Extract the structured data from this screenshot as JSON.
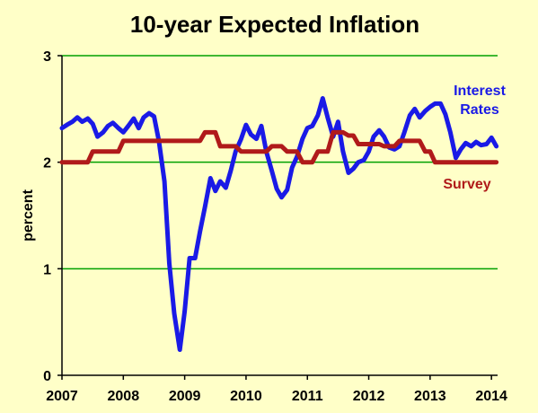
{
  "chart_data": {
    "type": "line",
    "title": "10-year Expected Inflation",
    "ylabel": "percent",
    "xlabel": "",
    "xlim": [
      2007,
      2014.1
    ],
    "ylim": [
      0,
      3
    ],
    "xticks": [
      "2007",
      "2008",
      "2009",
      "2010",
      "2011",
      "2012",
      "2013",
      "2014"
    ],
    "yticks": [
      "0",
      "1",
      "2",
      "3"
    ],
    "grid": "horizontal",
    "colors": {
      "background": "#FFFFC8",
      "grid": "#00A000",
      "axis": "#000000"
    },
    "series": [
      {
        "name": "Interest Rates",
        "label_lines": [
          "Interest",
          "Rates"
        ],
        "color": "#1A1AE6",
        "points": [
          [
            2007.0,
            2.32
          ],
          [
            2007.08,
            2.35
          ],
          [
            2007.17,
            2.38
          ],
          [
            2007.25,
            2.42
          ],
          [
            2007.33,
            2.38
          ],
          [
            2007.42,
            2.41
          ],
          [
            2007.5,
            2.36
          ],
          [
            2007.58,
            2.24
          ],
          [
            2007.67,
            2.28
          ],
          [
            2007.75,
            2.34
          ],
          [
            2007.83,
            2.37
          ],
          [
            2007.92,
            2.32
          ],
          [
            2008.0,
            2.28
          ],
          [
            2008.08,
            2.34
          ],
          [
            2008.17,
            2.41
          ],
          [
            2008.25,
            2.32
          ],
          [
            2008.33,
            2.42
          ],
          [
            2008.42,
            2.46
          ],
          [
            2008.5,
            2.43
          ],
          [
            2008.58,
            2.2
          ],
          [
            2008.67,
            1.82
          ],
          [
            2008.75,
            1.05
          ],
          [
            2008.83,
            0.58
          ],
          [
            2008.92,
            0.24
          ],
          [
            2009.0,
            0.6
          ],
          [
            2009.08,
            1.1
          ],
          [
            2009.17,
            1.1
          ],
          [
            2009.25,
            1.35
          ],
          [
            2009.33,
            1.58
          ],
          [
            2009.42,
            1.85
          ],
          [
            2009.5,
            1.73
          ],
          [
            2009.58,
            1.82
          ],
          [
            2009.67,
            1.76
          ],
          [
            2009.75,
            1.92
          ],
          [
            2009.83,
            2.1
          ],
          [
            2009.92,
            2.22
          ],
          [
            2010.0,
            2.35
          ],
          [
            2010.08,
            2.26
          ],
          [
            2010.17,
            2.22
          ],
          [
            2010.25,
            2.34
          ],
          [
            2010.33,
            2.1
          ],
          [
            2010.42,
            1.92
          ],
          [
            2010.5,
            1.75
          ],
          [
            2010.58,
            1.67
          ],
          [
            2010.67,
            1.74
          ],
          [
            2010.75,
            1.95
          ],
          [
            2010.83,
            2.05
          ],
          [
            2010.92,
            2.22
          ],
          [
            2011.0,
            2.32
          ],
          [
            2011.08,
            2.34
          ],
          [
            2011.17,
            2.44
          ],
          [
            2011.25,
            2.6
          ],
          [
            2011.33,
            2.42
          ],
          [
            2011.42,
            2.24
          ],
          [
            2011.5,
            2.38
          ],
          [
            2011.58,
            2.1
          ],
          [
            2011.67,
            1.9
          ],
          [
            2011.75,
            1.94
          ],
          [
            2011.83,
            2.0
          ],
          [
            2011.92,
            2.02
          ],
          [
            2012.0,
            2.1
          ],
          [
            2012.08,
            2.24
          ],
          [
            2012.17,
            2.3
          ],
          [
            2012.25,
            2.24
          ],
          [
            2012.33,
            2.14
          ],
          [
            2012.42,
            2.12
          ],
          [
            2012.5,
            2.15
          ],
          [
            2012.58,
            2.28
          ],
          [
            2012.67,
            2.44
          ],
          [
            2012.75,
            2.5
          ],
          [
            2012.83,
            2.42
          ],
          [
            2012.92,
            2.48
          ],
          [
            2013.0,
            2.52
          ],
          [
            2013.08,
            2.55
          ],
          [
            2013.17,
            2.55
          ],
          [
            2013.25,
            2.45
          ],
          [
            2013.33,
            2.28
          ],
          [
            2013.42,
            2.04
          ],
          [
            2013.5,
            2.12
          ],
          [
            2013.58,
            2.18
          ],
          [
            2013.67,
            2.15
          ],
          [
            2013.75,
            2.19
          ],
          [
            2013.83,
            2.16
          ],
          [
            2013.92,
            2.17
          ],
          [
            2014.0,
            2.23
          ],
          [
            2014.08,
            2.15
          ]
        ]
      },
      {
        "name": "Survey",
        "label_lines": [
          "Survey"
        ],
        "color": "#B01A1A",
        "points": [
          [
            2007.0,
            2.0
          ],
          [
            2007.42,
            2.0
          ],
          [
            2007.5,
            2.1
          ],
          [
            2007.92,
            2.1
          ],
          [
            2008.0,
            2.2
          ],
          [
            2009.25,
            2.2
          ],
          [
            2009.33,
            2.28
          ],
          [
            2009.5,
            2.28
          ],
          [
            2009.58,
            2.15
          ],
          [
            2009.83,
            2.15
          ],
          [
            2009.92,
            2.1
          ],
          [
            2010.33,
            2.1
          ],
          [
            2010.42,
            2.15
          ],
          [
            2010.58,
            2.15
          ],
          [
            2010.67,
            2.1
          ],
          [
            2010.83,
            2.1
          ],
          [
            2010.92,
            2.0
          ],
          [
            2011.08,
            2.0
          ],
          [
            2011.17,
            2.1
          ],
          [
            2011.33,
            2.1
          ],
          [
            2011.42,
            2.28
          ],
          [
            2011.58,
            2.28
          ],
          [
            2011.67,
            2.25
          ],
          [
            2011.75,
            2.25
          ],
          [
            2011.83,
            2.17
          ],
          [
            2012.17,
            2.17
          ],
          [
            2012.25,
            2.15
          ],
          [
            2012.42,
            2.15
          ],
          [
            2012.5,
            2.2
          ],
          [
            2012.83,
            2.2
          ],
          [
            2012.92,
            2.1
          ],
          [
            2013.0,
            2.1
          ],
          [
            2013.08,
            2.0
          ],
          [
            2014.08,
            2.0
          ]
        ]
      }
    ]
  }
}
